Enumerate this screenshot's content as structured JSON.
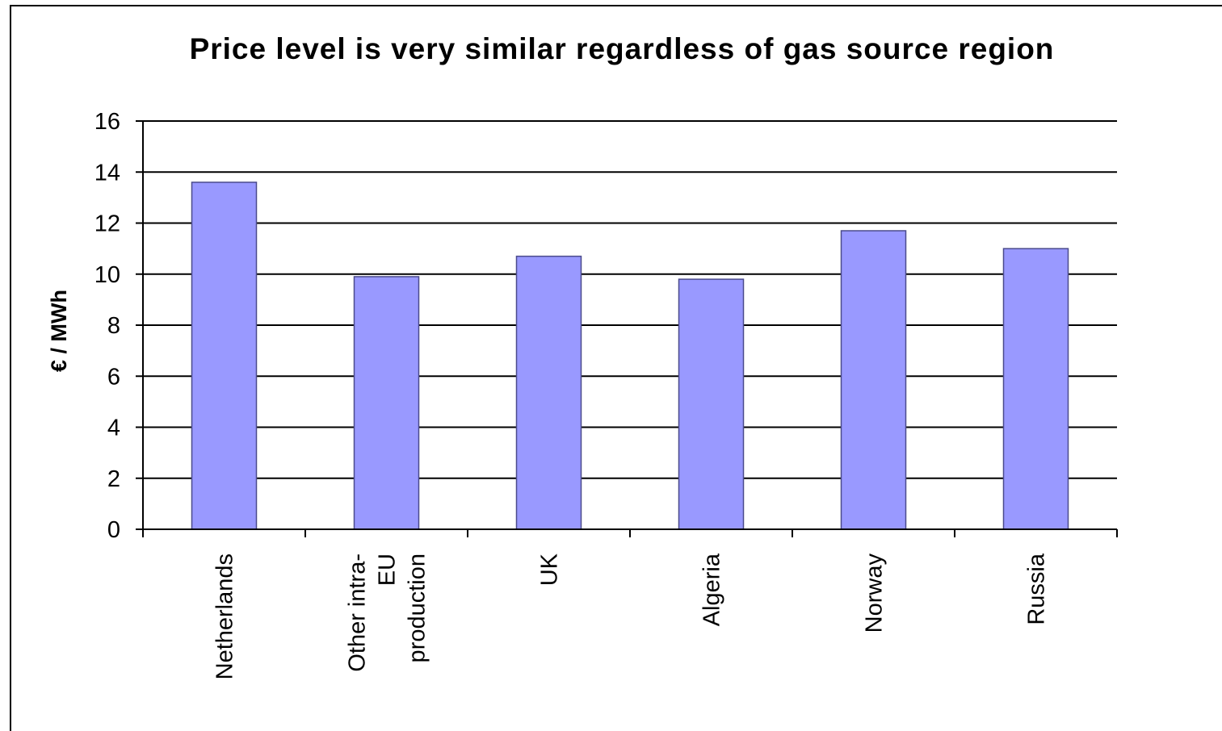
{
  "chart_data": {
    "type": "bar",
    "title": "Price level is very similar regardless of gas source region",
    "xlabel": "",
    "ylabel": "€ / MWh",
    "ylim": [
      0,
      16
    ],
    "yticks": [
      0,
      2,
      4,
      6,
      8,
      10,
      12,
      14,
      16
    ],
    "grid": true,
    "legend": "none",
    "categories": [
      [
        "Netherlands"
      ],
      [
        "Other intra-",
        "EU",
        "production"
      ],
      [
        "UK"
      ],
      [
        "Algeria"
      ],
      [
        "Norway"
      ],
      [
        "Russia"
      ]
    ],
    "values": [
      13.6,
      9.9,
      10.7,
      9.8,
      11.7,
      11.0
    ],
    "colors": {
      "bar_fill": "#9999ff",
      "bar_stroke": "#4b4b8c",
      "grid": "#000000",
      "text": "#000000"
    }
  }
}
